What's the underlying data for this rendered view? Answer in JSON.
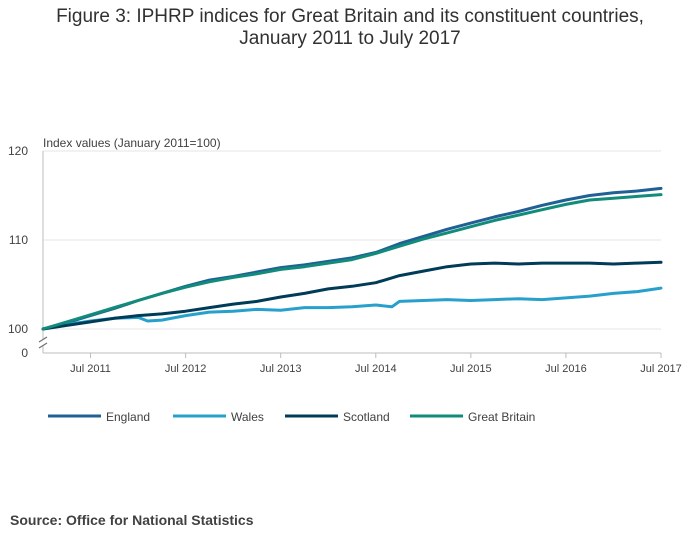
{
  "chart_data": {
    "type": "line",
    "title_line1": "Figure 3: IPHRP indices for Great Britain and its constituent countries,",
    "title_line2": "January 2011 to July 2017",
    "ylabel": "Index values (January 2011=100)",
    "ylim": [
      100,
      120
    ],
    "y_ticks": [
      100,
      110,
      120
    ],
    "y_break_label": "0",
    "x_start": 2011.0,
    "x_end": 2017.5,
    "x_tick_positions": [
      2011.5,
      2012.5,
      2013.5,
      2014.5,
      2015.5,
      2016.5,
      2017.5
    ],
    "x_tick_labels": [
      "Jul 2011",
      "Jul 2012",
      "Jul 2013",
      "Jul 2014",
      "Jul 2015",
      "Jul 2016",
      "Jul 2017"
    ],
    "source": "Source: Office for National Statistics",
    "series": [
      {
        "name": "England",
        "color": "#206095",
        "points": [
          [
            2011.0,
            100.0
          ],
          [
            2011.25,
            100.7
          ],
          [
            2011.5,
            101.5
          ],
          [
            2011.75,
            102.3
          ],
          [
            2012.0,
            103.2
          ],
          [
            2012.25,
            104.0
          ],
          [
            2012.5,
            104.8
          ],
          [
            2012.75,
            105.5
          ],
          [
            2013.0,
            105.9
          ],
          [
            2013.25,
            106.4
          ],
          [
            2013.5,
            106.9
          ],
          [
            2013.75,
            107.2
          ],
          [
            2014.0,
            107.6
          ],
          [
            2014.25,
            108.0
          ],
          [
            2014.5,
            108.6
          ],
          [
            2014.75,
            109.6
          ],
          [
            2015.0,
            110.4
          ],
          [
            2015.25,
            111.2
          ],
          [
            2015.5,
            111.9
          ],
          [
            2015.75,
            112.6
          ],
          [
            2016.0,
            113.2
          ],
          [
            2016.25,
            113.9
          ],
          [
            2016.5,
            114.5
          ],
          [
            2016.75,
            115.0
          ],
          [
            2017.0,
            115.3
          ],
          [
            2017.25,
            115.5
          ],
          [
            2017.5,
            115.8
          ]
        ]
      },
      {
        "name": "Wales",
        "color": "#27a0cc",
        "points": [
          [
            2011.0,
            100.0
          ],
          [
            2011.25,
            100.5
          ],
          [
            2011.5,
            100.9
          ],
          [
            2011.75,
            101.2
          ],
          [
            2012.0,
            101.3
          ],
          [
            2012.1,
            100.9
          ],
          [
            2012.25,
            101.0
          ],
          [
            2012.5,
            101.5
          ],
          [
            2012.75,
            101.9
          ],
          [
            2013.0,
            102.0
          ],
          [
            2013.25,
            102.2
          ],
          [
            2013.5,
            102.1
          ],
          [
            2013.75,
            102.4
          ],
          [
            2014.0,
            102.4
          ],
          [
            2014.25,
            102.5
          ],
          [
            2014.5,
            102.7
          ],
          [
            2014.67,
            102.5
          ],
          [
            2014.75,
            103.1
          ],
          [
            2015.0,
            103.2
          ],
          [
            2015.25,
            103.3
          ],
          [
            2015.5,
            103.2
          ],
          [
            2015.75,
            103.3
          ],
          [
            2016.0,
            103.4
          ],
          [
            2016.25,
            103.3
          ],
          [
            2016.5,
            103.5
          ],
          [
            2016.75,
            103.7
          ],
          [
            2017.0,
            104.0
          ],
          [
            2017.25,
            104.2
          ],
          [
            2017.5,
            104.6
          ]
        ]
      },
      {
        "name": "Scotland",
        "color": "#003c57",
        "points": [
          [
            2011.0,
            100.0
          ],
          [
            2011.25,
            100.4
          ],
          [
            2011.5,
            100.8
          ],
          [
            2011.75,
            101.2
          ],
          [
            2012.0,
            101.5
          ],
          [
            2012.25,
            101.7
          ],
          [
            2012.5,
            102.0
          ],
          [
            2012.75,
            102.4
          ],
          [
            2013.0,
            102.8
          ],
          [
            2013.25,
            103.1
          ],
          [
            2013.5,
            103.6
          ],
          [
            2013.75,
            104.0
          ],
          [
            2014.0,
            104.5
          ],
          [
            2014.25,
            104.8
          ],
          [
            2014.5,
            105.2
          ],
          [
            2014.75,
            106.0
          ],
          [
            2015.0,
            106.5
          ],
          [
            2015.25,
            107.0
          ],
          [
            2015.5,
            107.3
          ],
          [
            2015.75,
            107.4
          ],
          [
            2016.0,
            107.3
          ],
          [
            2016.25,
            107.4
          ],
          [
            2016.5,
            107.4
          ],
          [
            2016.75,
            107.4
          ],
          [
            2017.0,
            107.3
          ],
          [
            2017.25,
            107.4
          ],
          [
            2017.5,
            107.5
          ]
        ]
      },
      {
        "name": "Great Britain",
        "color": "#118c7b",
        "points": [
          [
            2011.0,
            100.0
          ],
          [
            2011.25,
            100.8
          ],
          [
            2011.5,
            101.6
          ],
          [
            2011.75,
            102.4
          ],
          [
            2012.0,
            103.2
          ],
          [
            2012.25,
            104.0
          ],
          [
            2012.5,
            104.7
          ],
          [
            2012.75,
            105.3
          ],
          [
            2013.0,
            105.8
          ],
          [
            2013.25,
            106.2
          ],
          [
            2013.5,
            106.7
          ],
          [
            2013.75,
            107.0
          ],
          [
            2014.0,
            107.4
          ],
          [
            2014.25,
            107.8
          ],
          [
            2014.5,
            108.5
          ],
          [
            2014.75,
            109.3
          ],
          [
            2015.0,
            110.1
          ],
          [
            2015.25,
            110.8
          ],
          [
            2015.5,
            111.5
          ],
          [
            2015.75,
            112.2
          ],
          [
            2016.0,
            112.8
          ],
          [
            2016.25,
            113.4
          ],
          [
            2016.5,
            114.0
          ],
          [
            2016.75,
            114.5
          ],
          [
            2017.0,
            114.7
          ],
          [
            2017.25,
            114.9
          ],
          [
            2017.5,
            115.1
          ]
        ]
      }
    ]
  }
}
